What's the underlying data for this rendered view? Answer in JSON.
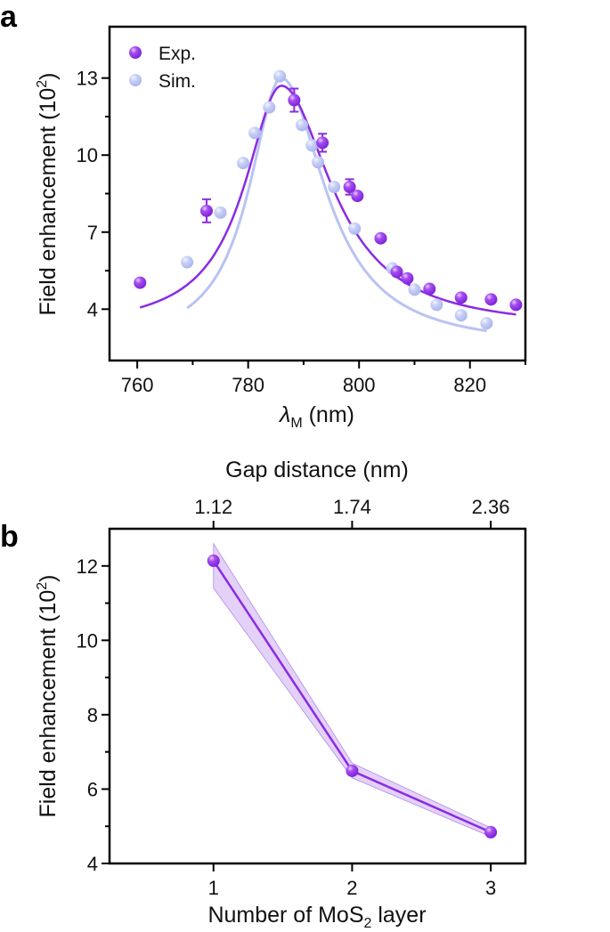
{
  "chart_data": [
    {
      "panel": "a",
      "type": "scatter",
      "title": "",
      "xlabel": "λ_M (nm)",
      "xlabel_main": "λ",
      "xlabel_sub": "M",
      "xlabel_unit": " (nm)",
      "ylabel": "Field enhancement (10^2)",
      "ylabel_main": "Field enhancement (10",
      "ylabel_sup": "2",
      "ylabel_end": ")",
      "xlim": [
        755,
        830
      ],
      "ylim": [
        2,
        15
      ],
      "xticks": [
        760,
        780,
        800,
        820
      ],
      "xminor": [
        770,
        790,
        810,
        830
      ],
      "yticks": [
        4,
        7,
        10,
        13
      ],
      "yminor": [
        5.5,
        8.5,
        11.5
      ],
      "grid": false,
      "legend_position": "top-left",
      "series": [
        {
          "name": "Exp.",
          "color": "#8a2be2",
          "x": [
            760.5,
            772.5,
            788.3,
            793.4,
            798.3,
            799.7,
            803.9,
            806.8,
            808.7,
            812.7,
            818.4,
            823.8,
            828.3
          ],
          "y": [
            5.03,
            7.83,
            12.14,
            10.48,
            8.76,
            8.41,
            6.76,
            5.45,
            5.2,
            4.79,
            4.45,
            4.38,
            4.17
          ],
          "error": [
            0,
            0.45,
            0.45,
            0.35,
            0.3,
            0,
            0,
            0,
            0,
            0,
            0,
            0,
            0
          ],
          "fit": {
            "type": "lorentzian",
            "x0": 786,
            "peak": 12.7,
            "width": 9.5,
            "baseline": 3.2
          }
        },
        {
          "name": "Sim.",
          "color": "#b9c3f2",
          "x": [
            769,
            775,
            779.1,
            781.2,
            783.8,
            785.7,
            789.7,
            791.5,
            792.6,
            795.5,
            799.2,
            806,
            810,
            814,
            818.4,
            823
          ],
          "y": [
            5.83,
            7.76,
            9.69,
            10.86,
            11.86,
            13.07,
            11.17,
            10.38,
            9.72,
            8.76,
            7.14,
            5.59,
            4.76,
            4.17,
            3.76,
            3.45
          ],
          "fit": {
            "type": "lorentzian",
            "x0": 786,
            "peak": 13.0,
            "width": 8.3,
            "baseline": 2.5
          }
        }
      ]
    },
    {
      "panel": "b",
      "type": "line",
      "title": "",
      "xlabel": "Number of MoS_2 layer",
      "xlabel_main": "Number of MoS",
      "xlabel_sub": "2",
      "xlabel_end": " layer",
      "x2label": "Gap distance (nm)",
      "ylabel": "Field enhancement (10^2)",
      "ylabel_main": "Field enhancement (10",
      "ylabel_sup": "2",
      "ylabel_end": ")",
      "categories": [
        1,
        2,
        3
      ],
      "x2_tick_labels": [
        "1.12",
        "1.74",
        "2.36"
      ],
      "xlim": [
        0.25,
        3.25
      ],
      "ylim": [
        4,
        13
      ],
      "yticks": [
        4,
        6,
        8,
        10,
        12
      ],
      "yminor": [
        5,
        7,
        9,
        11
      ],
      "grid": false,
      "series": [
        {
          "name": "Field enhancement",
          "color": "#8a2be2",
          "band_color": "#d9c2f5",
          "values": [
            12.14,
            6.49,
            4.84
          ],
          "band_upper": [
            12.6,
            6.7,
            4.96
          ],
          "band_lower": [
            11.4,
            6.3,
            4.72
          ]
        }
      ]
    }
  ],
  "panel_labels": {
    "a": "a",
    "b": "b"
  }
}
